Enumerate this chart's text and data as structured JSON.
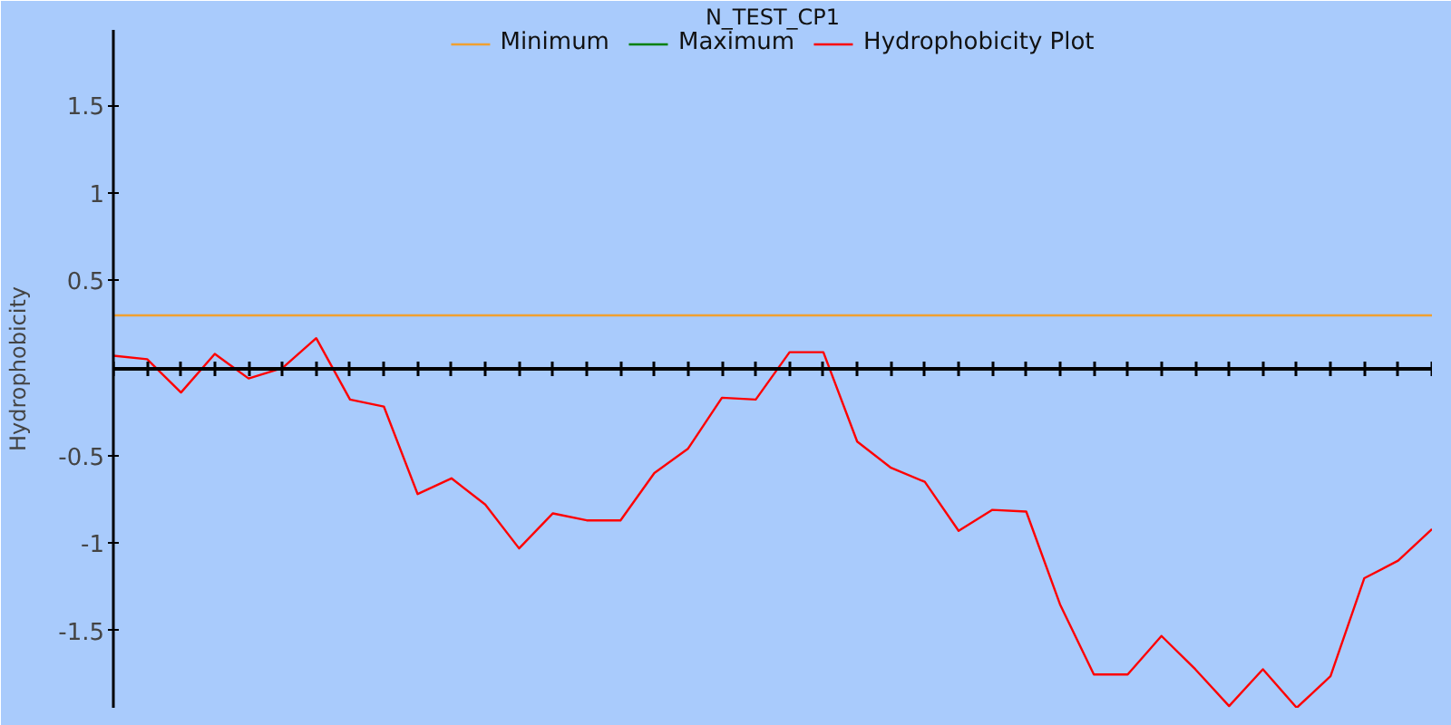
{
  "chart_data": {
    "type": "line",
    "title": "N_TEST_CP1",
    "ylabel": "Hydrophobicity",
    "categories": [
      null,
      null,
      null,
      null,
      null,
      null,
      null,
      null,
      null,
      null,
      null,
      null,
      null,
      null,
      null,
      null,
      null,
      null,
      null,
      null,
      null,
      null,
      null,
      null,
      null,
      null,
      null,
      null,
      null,
      null,
      null,
      null,
      null,
      null,
      null,
      null,
      null,
      null,
      null,
      null
    ],
    "series": [
      {
        "name": "Minimum",
        "color": "#f0a030",
        "values": [
          0.3,
          0.3,
          0.3,
          0.3,
          0.3,
          0.3,
          0.3,
          0.3,
          0.3,
          0.3,
          0.3,
          0.3,
          0.3,
          0.3,
          0.3,
          0.3,
          0.3,
          0.3,
          0.3,
          0.3,
          0.3,
          0.3,
          0.3,
          0.3,
          0.3,
          0.3,
          0.3,
          0.3,
          0.3,
          0.3,
          0.3,
          0.3,
          0.3,
          0.3,
          0.3,
          0.3,
          0.3,
          0.3,
          0.3,
          0.3
        ]
      },
      {
        "name": "Maximum",
        "color": "#008000",
        "values": [
          null,
          null,
          null,
          null,
          null,
          null,
          null,
          null,
          null,
          null,
          null,
          null,
          null,
          null,
          null,
          null,
          null,
          null,
          null,
          null,
          null,
          null,
          null,
          null,
          null,
          null,
          null,
          null,
          null,
          null,
          null,
          null,
          null,
          null,
          null,
          null,
          null,
          null,
          null,
          null
        ]
      },
      {
        "name": "Hydrophobicity Plot",
        "color": "#ff0000",
        "values": [
          0.07,
          0.05,
          -0.14,
          0.08,
          -0.06,
          0.0,
          0.17,
          -0.18,
          -0.22,
          -0.72,
          -0.63,
          -0.78,
          -1.03,
          -0.83,
          -0.87,
          -0.87,
          -0.6,
          -0.46,
          -0.17,
          -0.18,
          0.09,
          0.09,
          -0.42,
          -0.57,
          -0.65,
          -0.93,
          -0.81,
          -0.82,
          -1.35,
          -1.75,
          -1.75,
          -1.53,
          -1.72,
          -1.93,
          -1.72,
          -1.94,
          -1.76,
          -1.2,
          -1.1,
          -0.92
        ]
      }
    ],
    "ylim": [
      -1.94,
      1.93
    ],
    "yticks": [
      -1.5,
      -1,
      -0.5,
      0.5,
      1,
      1.5
    ],
    "grid": false,
    "legend": "top",
    "tick_labels": "y",
    "marker": "none"
  }
}
